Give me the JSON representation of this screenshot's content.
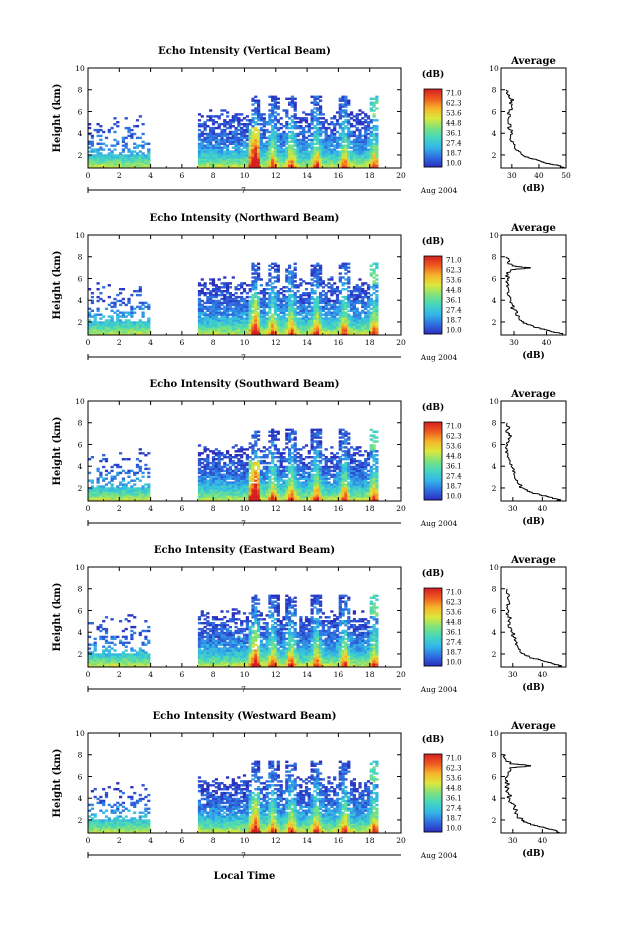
{
  "chart_data": {
    "type": "heatmap",
    "xlabel_bottom": "Local Time",
    "date_label": "Aug 2004",
    "day_label": "7",
    "x_ticks": [
      "0",
      "2",
      "4",
      "6",
      "8",
      "10",
      "12",
      "14",
      "16",
      "18",
      "20"
    ],
    "xlim": [
      0,
      20
    ],
    "y_ticks": [
      "2",
      "4",
      "6",
      "8",
      "10"
    ],
    "ylim": [
      0.8,
      10
    ],
    "ylabel": "Height (km)",
    "colorbar": {
      "unit": "(dB)",
      "ticks": [
        "71.0",
        "62.3",
        "53.6",
        "44.8",
        "36.1",
        "27.4",
        "18.7",
        "10.0"
      ],
      "range": [
        10.0,
        71.0
      ],
      "colors": [
        "#2b2fbf",
        "#2f6fe0",
        "#33b6e8",
        "#45d6c0",
        "#7ee27d",
        "#dce83c",
        "#f6b52a",
        "#ee5a20",
        "#d42020"
      ]
    },
    "data_gap_hours": [
      4.0,
      7.0
    ],
    "panels": [
      {
        "title": "Echo Intensity (Vertical Beam)",
        "profile_title": "Average",
        "profile_xlabel": "(dB)",
        "profile_xticks": [
          "30",
          "40",
          "50"
        ],
        "profile_xlim": [
          26,
          50
        ],
        "profile": [
          [
            0.8,
            49
          ],
          [
            1.0,
            48
          ],
          [
            1.2,
            44
          ],
          [
            1.4,
            41
          ],
          [
            1.6,
            39
          ],
          [
            1.8,
            36
          ],
          [
            2.0,
            34
          ],
          [
            2.4,
            32.5
          ],
          [
            2.8,
            31
          ],
          [
            3.2,
            30.5
          ],
          [
            3.6,
            29.5
          ],
          [
            4.0,
            30.2
          ],
          [
            4.4,
            29.0
          ],
          [
            4.8,
            29.6
          ],
          [
            5.2,
            28.6
          ],
          [
            5.6,
            29.4
          ],
          [
            6.0,
            29.0
          ],
          [
            6.4,
            30.0
          ],
          [
            6.8,
            29.2
          ],
          [
            7.1,
            30.6
          ],
          [
            7.3,
            29.0
          ],
          [
            7.6,
            28.4
          ],
          [
            8.0,
            28.0
          ]
        ]
      },
      {
        "title": "Echo Intensity (Northward Beam)",
        "profile_title": "Average",
        "profile_xlabel": "(dB)",
        "profile_xticks": [
          "30",
          "40"
        ],
        "profile_xlim": [
          26,
          46
        ],
        "profile": [
          [
            0.8,
            45
          ],
          [
            1.0,
            44
          ],
          [
            1.2,
            41
          ],
          [
            1.4,
            38
          ],
          [
            1.6,
            36
          ],
          [
            1.8,
            34
          ],
          [
            2.0,
            33
          ],
          [
            2.4,
            31.5
          ],
          [
            2.8,
            30.5
          ],
          [
            3.2,
            30.0
          ],
          [
            3.6,
            29.5
          ],
          [
            4.0,
            29.0
          ],
          [
            4.4,
            28.6
          ],
          [
            4.8,
            28.4
          ],
          [
            5.2,
            28.2
          ],
          [
            5.6,
            28.0
          ],
          [
            6.0,
            28.0
          ],
          [
            6.4,
            28.2
          ],
          [
            6.8,
            29.0
          ],
          [
            7.0,
            35.0
          ],
          [
            7.2,
            29.5
          ],
          [
            7.5,
            28.0
          ],
          [
            8.0,
            27.6
          ]
        ]
      },
      {
        "title": "Echo Intensity (Southward Beam)",
        "profile_title": "Average",
        "profile_xlabel": "(dB)",
        "profile_xticks": [
          "30",
          "40"
        ],
        "profile_xlim": [
          26,
          48
        ],
        "profile": [
          [
            0.8,
            46
          ],
          [
            1.0,
            45
          ],
          [
            1.2,
            42
          ],
          [
            1.4,
            39
          ],
          [
            1.6,
            36.5
          ],
          [
            1.8,
            35
          ],
          [
            2.0,
            33.5
          ],
          [
            2.4,
            32
          ],
          [
            2.8,
            31
          ],
          [
            3.2,
            30.5
          ],
          [
            3.6,
            30.0
          ],
          [
            4.0,
            29.5
          ],
          [
            4.4,
            29.0
          ],
          [
            4.8,
            28.6
          ],
          [
            5.2,
            28.3
          ],
          [
            5.6,
            28.0
          ],
          [
            6.0,
            28.2
          ],
          [
            6.4,
            28.8
          ],
          [
            6.8,
            29.5
          ],
          [
            7.1,
            28.4
          ],
          [
            7.4,
            28.2
          ],
          [
            8.0,
            28.0
          ]
        ]
      },
      {
        "title": "Echo Intensity (Eastward Beam)",
        "profile_title": "Average",
        "profile_xlabel": "(dB)",
        "profile_xticks": [
          "30",
          "40"
        ],
        "profile_xlim": [
          26,
          48
        ],
        "profile": [
          [
            0.8,
            46
          ],
          [
            1.0,
            45.5
          ],
          [
            1.2,
            43
          ],
          [
            1.4,
            40
          ],
          [
            1.6,
            37
          ],
          [
            1.8,
            35.5
          ],
          [
            2.0,
            34
          ],
          [
            2.4,
            32.5
          ],
          [
            2.8,
            31.5
          ],
          [
            3.2,
            31.0
          ],
          [
            3.6,
            30.3
          ],
          [
            4.0,
            29.8
          ],
          [
            4.4,
            29.4
          ],
          [
            4.8,
            29.0
          ],
          [
            5.2,
            28.8
          ],
          [
            5.6,
            28.4
          ],
          [
            6.0,
            28.6
          ],
          [
            6.4,
            28.2
          ],
          [
            6.8,
            28.8
          ],
          [
            7.2,
            28.2
          ],
          [
            8.0,
            28.0
          ]
        ]
      },
      {
        "title": "Echo Intensity (Westward Beam)",
        "profile_title": "Average",
        "profile_xlabel": "(dB)",
        "profile_xticks": [
          "30",
          "40"
        ],
        "profile_xlim": [
          26,
          48
        ],
        "profile": [
          [
            0.8,
            46
          ],
          [
            1.0,
            45
          ],
          [
            1.2,
            42
          ],
          [
            1.4,
            39
          ],
          [
            1.6,
            36
          ],
          [
            1.8,
            34.5
          ],
          [
            2.0,
            33
          ],
          [
            2.4,
            31.5
          ],
          [
            2.8,
            31.0
          ],
          [
            3.2,
            30.5
          ],
          [
            3.6,
            29.5
          ],
          [
            4.0,
            29.0
          ],
          [
            4.4,
            28.6
          ],
          [
            4.8,
            28.2
          ],
          [
            5.2,
            28.0
          ],
          [
            5.6,
            28.2
          ],
          [
            6.0,
            28.0
          ],
          [
            6.4,
            28.4
          ],
          [
            6.8,
            29.0
          ],
          [
            7.0,
            36.0
          ],
          [
            7.2,
            29.0
          ],
          [
            7.6,
            27.6
          ],
          [
            8.0,
            27.4
          ]
        ]
      }
    ]
  }
}
